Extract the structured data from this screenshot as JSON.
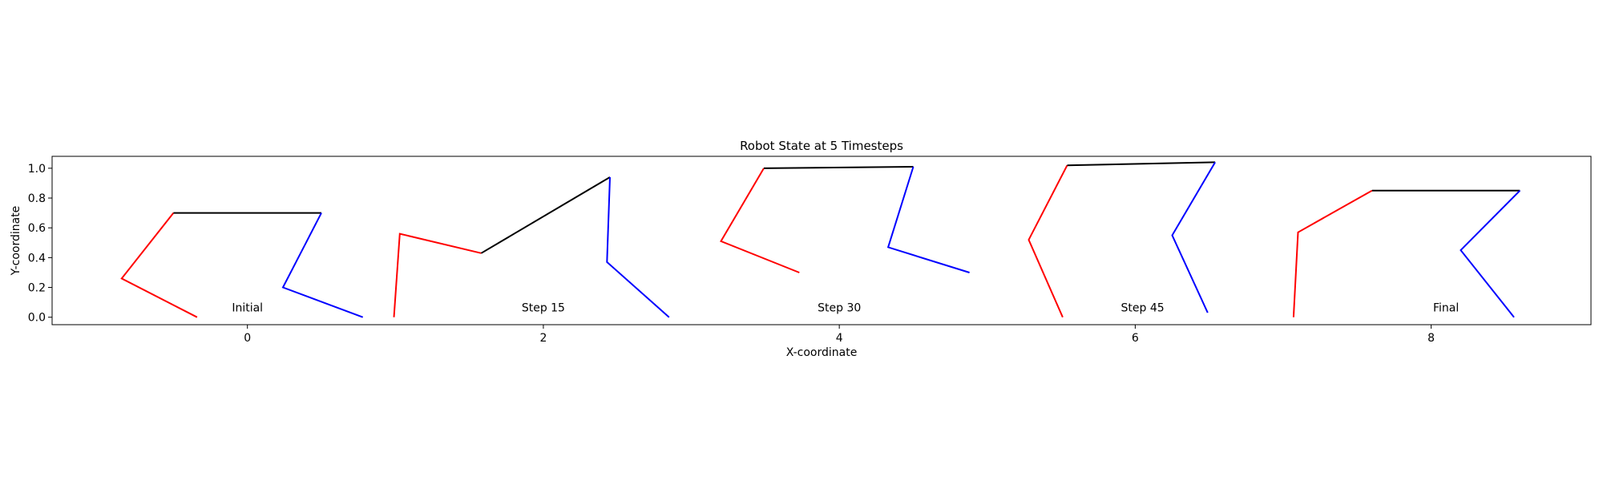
{
  "chart_data": {
    "type": "line",
    "title": "Robot State at 5 Timesteps",
    "xlabel": "X-coordinate",
    "ylabel": "Y-coordinate",
    "xlim": [
      -1.32,
      9.08
    ],
    "ylim": [
      -0.05,
      1.08
    ],
    "x_ticks": [
      0,
      2,
      4,
      6,
      8
    ],
    "y_ticks": [
      0.0,
      0.2,
      0.4,
      0.6,
      0.8,
      1.0
    ],
    "x_tick_labels": [
      "0",
      "2",
      "4",
      "6",
      "8"
    ],
    "y_tick_labels": [
      "0.0",
      "0.2",
      "0.4",
      "0.6",
      "0.8",
      "1.0"
    ],
    "grid": false,
    "colors": {
      "left_leg": "#ff0000",
      "body": "#000000",
      "right_leg": "#0000ff"
    },
    "timesteps": [
      {
        "label": "Initial",
        "label_pos": [
          0.0,
          0.0
        ],
        "left_leg": [
          [
            -0.34,
            0.0
          ],
          [
            -0.85,
            0.26
          ],
          [
            -0.5,
            0.7
          ]
        ],
        "body": [
          [
            -0.5,
            0.7
          ],
          [
            0.5,
            0.7
          ]
        ],
        "right_leg": [
          [
            0.5,
            0.7
          ],
          [
            0.24,
            0.2
          ],
          [
            0.78,
            0.0
          ]
        ]
      },
      {
        "label": "Step 15",
        "label_pos": [
          2.0,
          0.0
        ],
        "left_leg": [
          [
            0.99,
            0.0
          ],
          [
            1.03,
            0.56
          ],
          [
            1.58,
            0.43
          ]
        ],
        "body": [
          [
            1.58,
            0.43
          ],
          [
            2.45,
            0.94
          ]
        ],
        "right_leg": [
          [
            2.45,
            0.94
          ],
          [
            2.43,
            0.37
          ],
          [
            2.85,
            0.0
          ]
        ]
      },
      {
        "label": "Step 30",
        "label_pos": [
          4.0,
          0.0
        ],
        "left_leg": [
          [
            3.73,
            0.3
          ],
          [
            3.2,
            0.51
          ],
          [
            3.49,
            1.0
          ]
        ],
        "body": [
          [
            3.49,
            1.0
          ],
          [
            4.5,
            1.01
          ]
        ],
        "right_leg": [
          [
            4.5,
            1.01
          ],
          [
            4.33,
            0.47
          ],
          [
            4.88,
            0.3
          ]
        ]
      },
      {
        "label": "Step 45",
        "label_pos": [
          6.05,
          0.0
        ],
        "left_leg": [
          [
            5.51,
            0.0
          ],
          [
            5.28,
            0.52
          ],
          [
            5.54,
            1.02
          ]
        ],
        "body": [
          [
            5.54,
            1.02
          ],
          [
            6.54,
            1.04
          ]
        ],
        "right_leg": [
          [
            6.54,
            1.04
          ],
          [
            6.25,
            0.55
          ],
          [
            6.49,
            0.03
          ]
        ]
      },
      {
        "label": "Final",
        "label_pos": [
          8.1,
          0.0
        ],
        "left_leg": [
          [
            7.07,
            0.0
          ],
          [
            7.1,
            0.57
          ],
          [
            7.6,
            0.85
          ]
        ],
        "body": [
          [
            7.6,
            0.85
          ],
          [
            8.6,
            0.85
          ]
        ],
        "right_leg": [
          [
            8.6,
            0.85
          ],
          [
            8.2,
            0.45
          ],
          [
            8.56,
            0.0
          ]
        ]
      }
    ]
  }
}
